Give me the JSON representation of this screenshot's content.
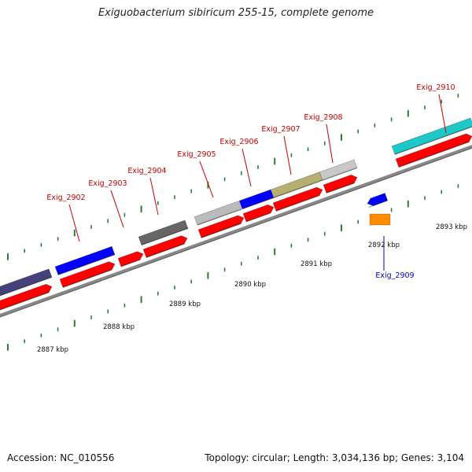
{
  "title": "Exiguobacterium sibiricum 255-15, complete genome",
  "footer": {
    "accession": "Accession: NC_010556",
    "topology": "Topology: circular; Length: 3,034,136 bp; Genes: 3,104"
  },
  "colors": {
    "forward_label": "#cc0000",
    "reverse_label": "#0000cc",
    "backbone": "#888888",
    "tick": "#2e7d32",
    "cds": "#ff0000"
  },
  "scale_labels": [
    "2887 kbp",
    "2888 kbp",
    "2889 kbp",
    "2890 kbp",
    "2891 kbp",
    "2892 kbp",
    "2893 kbp"
  ],
  "genes": [
    {
      "name": "Exig_2902",
      "strand": "+",
      "color": "#0000ff"
    },
    {
      "name": "Exig_2903",
      "strand": "+",
      "color": "#ff0000"
    },
    {
      "name": "Exig_2904",
      "strand": "+",
      "color": "#666666"
    },
    {
      "name": "Exig_2905",
      "strand": "+",
      "color": "#bbbbbb"
    },
    {
      "name": "Exig_2906",
      "strand": "+",
      "color": "#0000ff"
    },
    {
      "name": "Exig_2907",
      "strand": "+",
      "color": "#b5b070"
    },
    {
      "name": "Exig_2908",
      "strand": "+",
      "color": "#c8c8c8"
    },
    {
      "name": "Exig_2909",
      "strand": "-",
      "color": "#ff8c00"
    },
    {
      "name": "Exig_2910",
      "strand": "+",
      "color": "#1ec8c8"
    }
  ]
}
